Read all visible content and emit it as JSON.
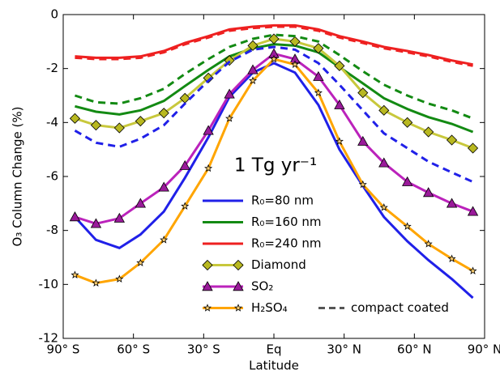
{
  "chart_data": {
    "type": "line",
    "xlabel": "Latitude",
    "ylabel": "O₃ Column Change (%)",
    "annotation": "1 Tg yr⁻¹",
    "xlim": [
      -90,
      90
    ],
    "ylim": [
      -12,
      0
    ],
    "xticks": [
      {
        "value": -90,
        "label": "90° S"
      },
      {
        "value": -60,
        "label": "60° S"
      },
      {
        "value": -30,
        "label": "30° S"
      },
      {
        "value": 0,
        "label": "Eq"
      },
      {
        "value": 30,
        "label": "30° N"
      },
      {
        "value": 60,
        "label": "60° N"
      },
      {
        "value": 90,
        "label": "90° N"
      }
    ],
    "yticks": [
      -12,
      -10,
      -8,
      -6,
      -4,
      -2,
      0
    ],
    "legend": "lower right",
    "legend_dashed": {
      "name": "compact coated",
      "color": "#555555"
    },
    "x": [
      -85,
      -76,
      -66,
      -57,
      -47,
      -38,
      -28,
      -19,
      -9,
      0,
      9,
      19,
      28,
      38,
      47,
      57,
      66,
      76,
      85
    ],
    "series": [
      {
        "name": "R₀=80 nm",
        "color": "#2020e8",
        "values": [
          -7.5,
          -8.35,
          -8.65,
          -8.15,
          -7.3,
          -6.05,
          -4.55,
          -3.05,
          -2.15,
          -1.8,
          -2.15,
          -3.35,
          -5.0,
          -6.35,
          -7.5,
          -8.4,
          -9.1,
          -9.8,
          -10.5
        ]
      },
      {
        "name": "R₀=160 nm",
        "color": "#138a13",
        "values": [
          -3.4,
          -3.6,
          -3.7,
          -3.55,
          -3.2,
          -2.65,
          -2.05,
          -1.55,
          -1.25,
          -1.1,
          -1.15,
          -1.4,
          -1.95,
          -2.55,
          -3.1,
          -3.5,
          -3.8,
          -4.05,
          -4.35
        ]
      },
      {
        "name": "R₀=240 nm",
        "color": "#ee2020",
        "values": [
          -1.55,
          -1.6,
          -1.6,
          -1.55,
          -1.35,
          -1.05,
          -0.8,
          -0.55,
          -0.45,
          -0.4,
          -0.4,
          -0.55,
          -0.8,
          -1.0,
          -1.2,
          -1.35,
          -1.5,
          -1.7,
          -1.85
        ]
      },
      {
        "name": "Diamond",
        "color": "#c8c83c",
        "marker": "diamond",
        "marker_color": "#b8b820",
        "values": [
          -3.85,
          -4.1,
          -4.2,
          -3.95,
          -3.65,
          -3.1,
          -2.35,
          -1.7,
          -1.15,
          -0.9,
          -1.0,
          -1.25,
          -1.9,
          -2.9,
          -3.55,
          -4.0,
          -4.35,
          -4.65,
          -4.95
        ]
      },
      {
        "name": "SO₂",
        "color": "#bb22bb",
        "marker": "triangle",
        "marker_color": "#9a1a9a",
        "values": [
          -7.5,
          -7.75,
          -7.55,
          -7.0,
          -6.4,
          -5.6,
          -4.3,
          -2.95,
          -2.05,
          -1.45,
          -1.65,
          -2.3,
          -3.35,
          -4.7,
          -5.5,
          -6.2,
          -6.6,
          -7.0,
          -7.3
        ]
      },
      {
        "name": "H₂SO₄",
        "color": "#ffa500",
        "marker": "star",
        "marker_color": "#ffd070",
        "values": [
          -9.65,
          -9.95,
          -9.8,
          -9.2,
          -8.35,
          -7.1,
          -5.7,
          -3.85,
          -2.45,
          -1.65,
          -1.85,
          -2.9,
          -4.7,
          -6.3,
          -7.15,
          -7.85,
          -8.5,
          -9.05,
          -9.5
        ]
      },
      {
        "color": "#2020e8",
        "dashed": true,
        "values": [
          -4.3,
          -4.75,
          -4.9,
          -4.6,
          -4.1,
          -3.3,
          -2.45,
          -1.75,
          -1.3,
          -1.2,
          -1.3,
          -1.8,
          -2.6,
          -3.55,
          -4.4,
          -4.95,
          -5.45,
          -5.85,
          -6.2
        ]
      },
      {
        "color": "#138a13",
        "dashed": true,
        "values": [
          -3.0,
          -3.25,
          -3.3,
          -3.1,
          -2.75,
          -2.2,
          -1.65,
          -1.2,
          -0.9,
          -0.75,
          -0.8,
          -1.0,
          -1.5,
          -2.1,
          -2.6,
          -3.0,
          -3.3,
          -3.55,
          -3.85
        ]
      },
      {
        "color": "#ee2020",
        "dashed": true,
        "values": [
          -1.6,
          -1.65,
          -1.65,
          -1.6,
          -1.4,
          -1.1,
          -0.85,
          -0.6,
          -0.5,
          -0.45,
          -0.45,
          -0.6,
          -0.85,
          -1.05,
          -1.25,
          -1.4,
          -1.55,
          -1.75,
          -1.9
        ]
      }
    ]
  }
}
